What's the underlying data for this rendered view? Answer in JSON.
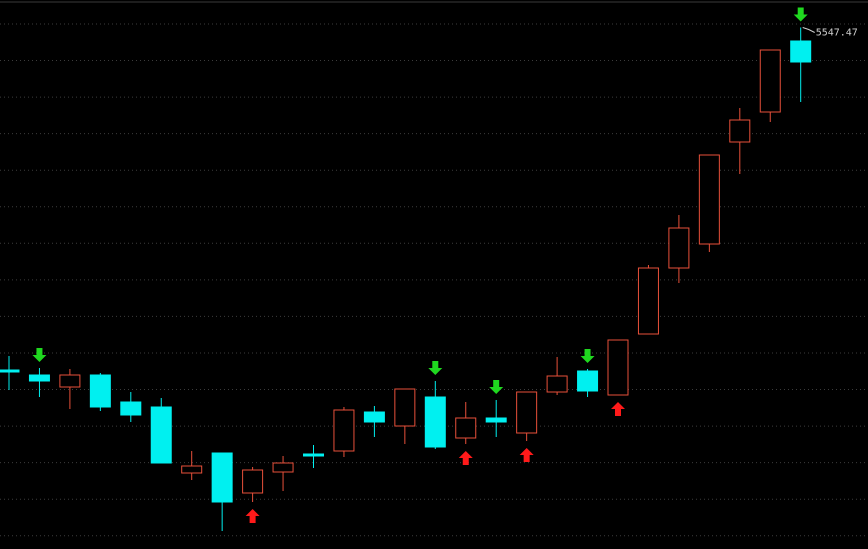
{
  "chart_data": {
    "type": "candlestick",
    "x": [
      null,
      null,
      null,
      null,
      null,
      null,
      null,
      null,
      null,
      null,
      null,
      null,
      null,
      null,
      null,
      null,
      null,
      null,
      null,
      null,
      null,
      null,
      null,
      null,
      null,
      null,
      null
    ],
    "open": [
      3835,
      3810,
      3750,
      3810,
      3675,
      3650,
      3320,
      3420,
      3220,
      3325,
      3415,
      3430,
      3625,
      3555,
      3700,
      3495,
      3595,
      3520,
      3725,
      3830,
      3710,
      4015,
      4345,
      4465,
      4975,
      5125,
      5480
    ],
    "close": [
      3825,
      3780,
      3810,
      3650,
      3610,
      3370,
      3355,
      3175,
      3335,
      3370,
      3405,
      3635,
      3575,
      3740,
      3450,
      3595,
      3575,
      3725,
      3805,
      3730,
      3985,
      4345,
      4545,
      4910,
      5085,
      5435,
      5375
    ],
    "high": [
      3905,
      3845,
      3840,
      3820,
      3725,
      3695,
      3430,
      3420,
      3350,
      3405,
      3460,
      3650,
      3655,
      3740,
      3780,
      3675,
      3685,
      3725,
      3900,
      3840,
      3985,
      4360,
      4610,
      4910,
      5145,
      5435,
      5547.47
    ],
    "low": [
      3735,
      3700,
      3640,
      3630,
      3575,
      3370,
      3285,
      3030,
      3175,
      3230,
      3345,
      3400,
      3500,
      3465,
      3440,
      3465,
      3500,
      3480,
      3710,
      3700,
      3710,
      4015,
      4270,
      4425,
      4815,
      5075,
      5175
    ],
    "signals": [
      null,
      "sell",
      null,
      null,
      null,
      null,
      null,
      null,
      "buy",
      null,
      null,
      null,
      null,
      null,
      "sell",
      "buy",
      "sell",
      "buy",
      null,
      "sell",
      "buy",
      null,
      null,
      null,
      null,
      null,
      "sell"
    ],
    "up_color": "#e8503a",
    "down_color": "#00f0f0",
    "buy_color": "#ff1a1a",
    "sell_color": "#1fd81f",
    "ylim": [
      2940,
      5685
    ],
    "grid": true
  }
}
